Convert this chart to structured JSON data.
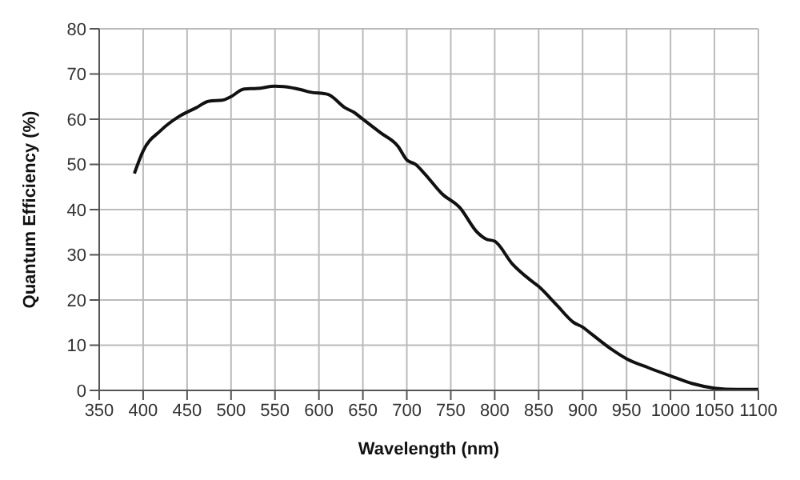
{
  "chart_data": {
    "type": "line",
    "xlabel": "Wavelength (nm)",
    "ylabel": "Quantum Efficiency (%)",
    "x": [
      390,
      400,
      420,
      440,
      460,
      475,
      490,
      500,
      515,
      530,
      550,
      560,
      580,
      590,
      610,
      630,
      640,
      650,
      670,
      690,
      700,
      710,
      720,
      740,
      760,
      780,
      790,
      800,
      820,
      840,
      850,
      870,
      890,
      900,
      910,
      930,
      950,
      975,
      1000,
      1025,
      1050,
      1075,
      1100
    ],
    "series": [
      {
        "color": "#111111",
        "values": [
          48,
          53,
          57.5,
          60.5,
          62.5,
          64,
          64.2,
          65,
          66.7,
          66.8,
          67.3,
          67.2,
          66.5,
          66,
          65.5,
          62.5,
          61.5,
          60,
          57,
          54,
          51,
          50,
          48,
          43.5,
          40.5,
          35,
          33.5,
          33,
          28,
          24.5,
          23,
          19,
          15,
          14,
          12.5,
          9.5,
          7,
          5,
          3.2,
          1.5,
          0.5,
          0.2,
          0.2
        ]
      }
    ],
    "xlim": [
      350,
      1100
    ],
    "xticks": [
      350,
      400,
      450,
      500,
      550,
      600,
      650,
      700,
      750,
      800,
      850,
      900,
      950,
      1000,
      1050,
      1100
    ],
    "ylim": [
      0,
      80
    ],
    "yticks": [
      0,
      10,
      20,
      30,
      40,
      50,
      60,
      70,
      80
    ],
    "grid": true,
    "marker": "none",
    "line_style": "solid",
    "legend": false
  }
}
